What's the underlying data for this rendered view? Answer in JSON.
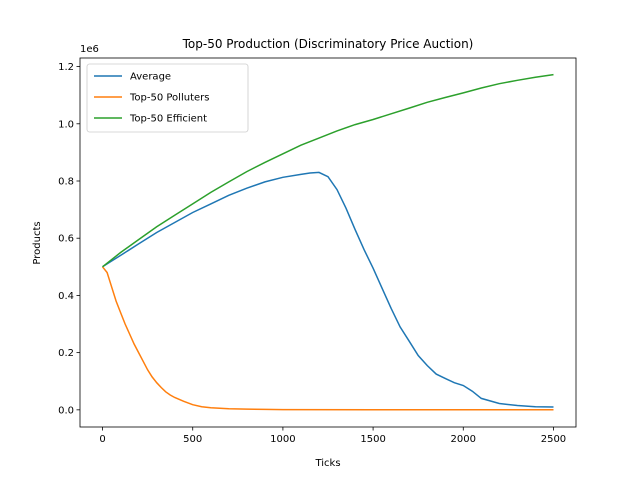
{
  "chart_data": {
    "type": "line",
    "title": "Top-50 Production (Discriminatory Price Auction)",
    "xlabel": "Ticks",
    "ylabel": "Products",
    "y_offset_label": "1e6",
    "xlim": [
      -125,
      2625
    ],
    "ylim": [
      -60000,
      1230000
    ],
    "xticks": [
      0,
      500,
      1000,
      1500,
      2000,
      2500
    ],
    "xtick_labels": [
      "0",
      "500",
      "1000",
      "1500",
      "2000",
      "2500"
    ],
    "yticks": [
      0,
      200000,
      400000,
      600000,
      800000,
      1000000,
      1200000
    ],
    "ytick_labels": [
      "0.0",
      "0.2",
      "0.4",
      "0.6",
      "0.8",
      "1.0",
      "1.2"
    ],
    "grid": false,
    "legend_position": "top-left",
    "series": [
      {
        "name": "Average",
        "color": "#1f77b4",
        "points": [
          [
            0,
            500000
          ],
          [
            100,
            540000
          ],
          [
            200,
            580000
          ],
          [
            300,
            620000
          ],
          [
            400,
            655000
          ],
          [
            500,
            690000
          ],
          [
            600,
            720000
          ],
          [
            700,
            750000
          ],
          [
            800,
            775000
          ],
          [
            900,
            797000
          ],
          [
            1000,
            813000
          ],
          [
            1100,
            823000
          ],
          [
            1150,
            828000
          ],
          [
            1200,
            830000
          ],
          [
            1250,
            815000
          ],
          [
            1300,
            770000
          ],
          [
            1350,
            705000
          ],
          [
            1400,
            630000
          ],
          [
            1450,
            560000
          ],
          [
            1500,
            495000
          ],
          [
            1550,
            425000
          ],
          [
            1600,
            355000
          ],
          [
            1650,
            290000
          ],
          [
            1700,
            240000
          ],
          [
            1750,
            190000
          ],
          [
            1800,
            155000
          ],
          [
            1850,
            125000
          ],
          [
            1900,
            110000
          ],
          [
            1950,
            95000
          ],
          [
            2000,
            85000
          ],
          [
            2050,
            65000
          ],
          [
            2100,
            40000
          ],
          [
            2200,
            22000
          ],
          [
            2300,
            15000
          ],
          [
            2400,
            11000
          ],
          [
            2500,
            10000
          ]
        ]
      },
      {
        "name": "Top-50 Polluters",
        "color": "#ff7f0e",
        "points": [
          [
            0,
            500000
          ],
          [
            25,
            480000
          ],
          [
            50,
            430000
          ],
          [
            75,
            380000
          ],
          [
            100,
            340000
          ],
          [
            125,
            300000
          ],
          [
            150,
            265000
          ],
          [
            175,
            230000
          ],
          [
            200,
            200000
          ],
          [
            225,
            170000
          ],
          [
            250,
            140000
          ],
          [
            275,
            115000
          ],
          [
            300,
            95000
          ],
          [
            325,
            78000
          ],
          [
            350,
            63000
          ],
          [
            375,
            52000
          ],
          [
            400,
            43000
          ],
          [
            450,
            30000
          ],
          [
            500,
            18000
          ],
          [
            550,
            11000
          ],
          [
            600,
            7000
          ],
          [
            700,
            4000
          ],
          [
            800,
            2500
          ],
          [
            900,
            1500
          ],
          [
            1000,
            1000
          ],
          [
            1500,
            500
          ],
          [
            2000,
            300
          ],
          [
            2500,
            0
          ]
        ]
      },
      {
        "name": "Top-50 Efficient",
        "color": "#2ca02c",
        "points": [
          [
            0,
            500000
          ],
          [
            100,
            550000
          ],
          [
            200,
            595000
          ],
          [
            300,
            640000
          ],
          [
            400,
            680000
          ],
          [
            500,
            720000
          ],
          [
            600,
            760000
          ],
          [
            700,
            797000
          ],
          [
            800,
            833000
          ],
          [
            900,
            865000
          ],
          [
            1000,
            895000
          ],
          [
            1100,
            925000
          ],
          [
            1200,
            950000
          ],
          [
            1300,
            975000
          ],
          [
            1400,
            997000
          ],
          [
            1500,
            1015000
          ],
          [
            1600,
            1035000
          ],
          [
            1700,
            1055000
          ],
          [
            1800,
            1075000
          ],
          [
            1900,
            1092000
          ],
          [
            2000,
            1108000
          ],
          [
            2100,
            1125000
          ],
          [
            2200,
            1140000
          ],
          [
            2300,
            1152000
          ],
          [
            2400,
            1163000
          ],
          [
            2500,
            1172000
          ]
        ]
      }
    ]
  }
}
